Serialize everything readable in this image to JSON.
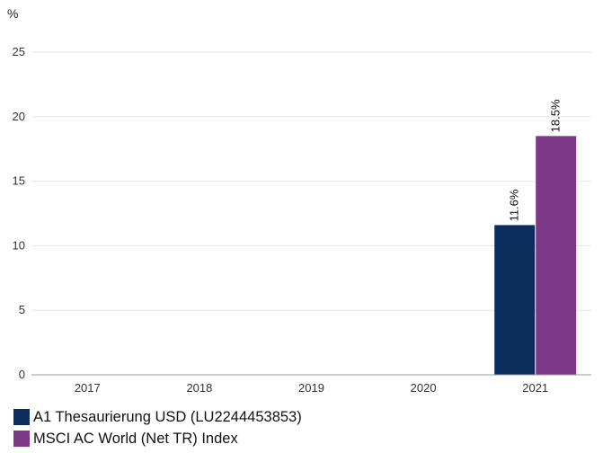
{
  "chart_data": {
    "type": "bar",
    "y_unit_label": "%",
    "categories": [
      "2017",
      "2018",
      "2019",
      "2020",
      "2021"
    ],
    "series": [
      {
        "name": "A1 Thesaurierung USD (LU2244453853)",
        "color": "#0c2c5c",
        "values": [
          null,
          null,
          null,
          null,
          11.6
        ],
        "labels": [
          "",
          "",
          "",
          "",
          "11.6%"
        ]
      },
      {
        "name": "MSCI AC World (Net TR) Index",
        "color": "#7c3a86",
        "values": [
          null,
          null,
          null,
          null,
          18.5
        ],
        "labels": [
          "",
          "",
          "",
          "",
          "18.5%"
        ]
      }
    ],
    "ylim": [
      0,
      25
    ],
    "yticks": [
      0,
      5,
      10,
      15,
      20,
      25
    ],
    "grid": true,
    "legend_position": "bottom-left"
  }
}
